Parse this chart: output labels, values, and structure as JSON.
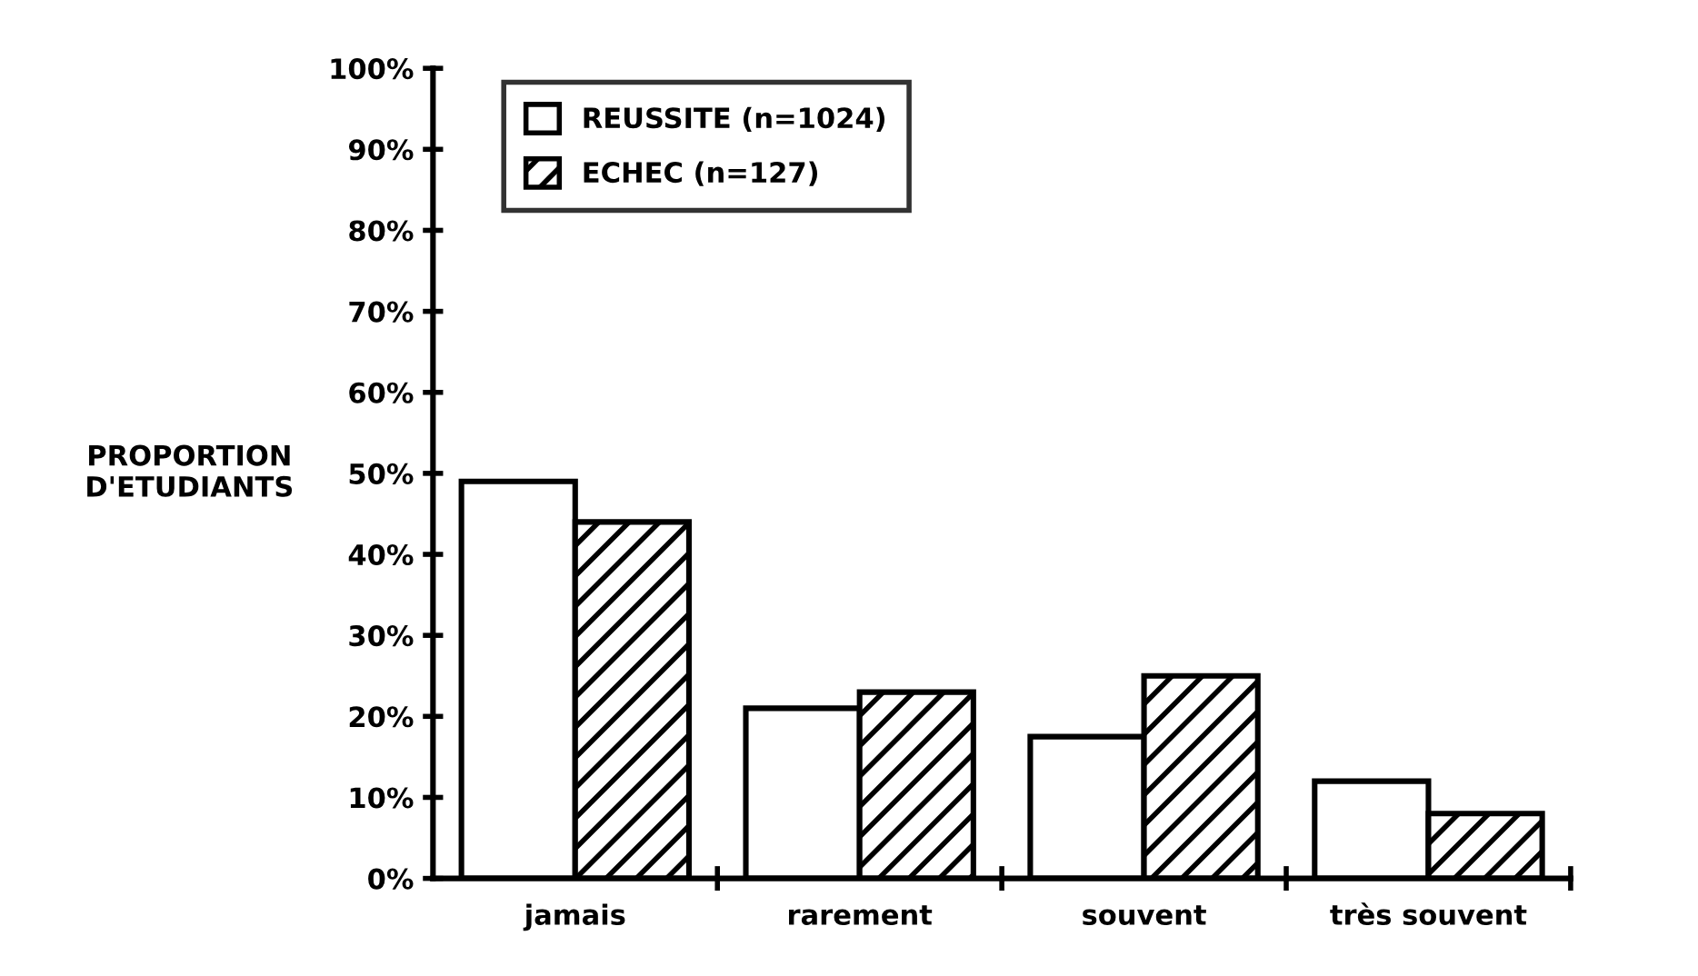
{
  "chart_data": {
    "type": "bar",
    "ylabel": "PROPORTION\nD'ETUDIANTS",
    "categories": [
      "jamais",
      "rarement",
      "souvent",
      "très souvent"
    ],
    "series": [
      {
        "name": "REUSSITE (n=1024)",
        "color": "#ffffff",
        "values": [
          49,
          21,
          17.5,
          12
        ]
      },
      {
        "name": "ECHEC (n=127)",
        "color": "#000000",
        "values": [
          44,
          23,
          25,
          8
        ]
      }
    ],
    "ylim": [
      0,
      100
    ],
    "yticks": [
      {
        "value": 0,
        "label": "0%"
      },
      {
        "value": 10,
        "label": "10%"
      },
      {
        "value": 20,
        "label": "20%"
      },
      {
        "value": 30,
        "label": "30%"
      },
      {
        "value": 40,
        "label": "40%"
      },
      {
        "value": 50,
        "label": "50%"
      },
      {
        "value": 60,
        "label": "60%"
      },
      {
        "value": 70,
        "label": "70%"
      },
      {
        "value": 80,
        "label": "80%"
      },
      {
        "value": 90,
        "label": "90%"
      },
      {
        "value": 100,
        "label": "100%"
      }
    ],
    "grid": false,
    "legend": "top left"
  }
}
